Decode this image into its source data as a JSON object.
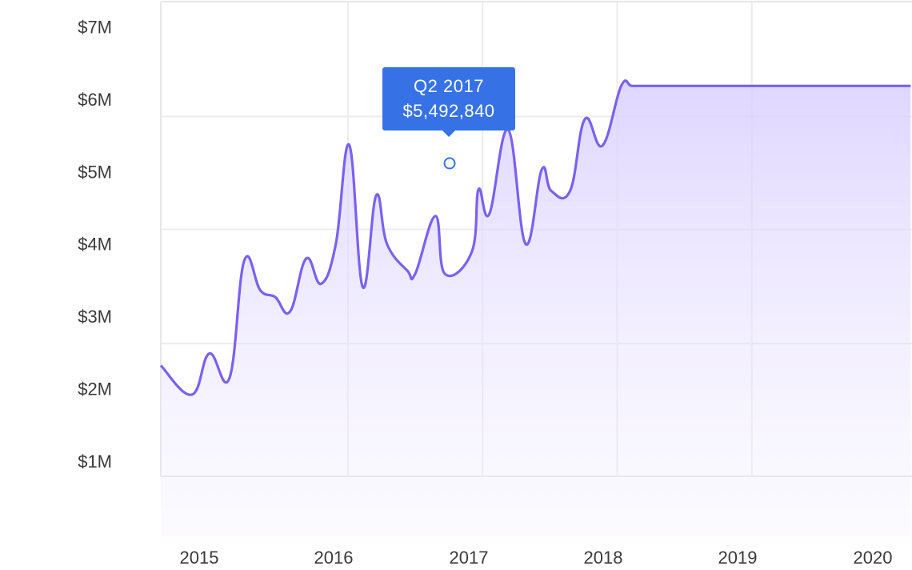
{
  "chart_data": {
    "type": "area",
    "title": "",
    "xlabel": "",
    "ylabel": "",
    "x_tick_labels": [
      "2015",
      "2016",
      "2017",
      "2018",
      "2019",
      "2020"
    ],
    "y_tick_labels": [
      "$7M",
      "$6M",
      "$5M",
      "$4M",
      "$3M",
      "$2M",
      "$1M"
    ],
    "ylim": [
      0.5,
      7.65
    ],
    "xlim": [
      2014.71,
      2020.29
    ],
    "grid": true,
    "line_color": "#7b61f0",
    "fill_color": "#e4dcff",
    "series": [
      {
        "name": "",
        "x": [
          2014.71,
          2014.94,
          2015.07,
          2015.22,
          2015.33,
          2015.45,
          2015.56,
          2015.67,
          2015.79,
          2015.9,
          2016.01,
          2016.11,
          2016.21,
          2016.31,
          2016.39,
          2016.54,
          2016.6,
          2016.75,
          2016.82,
          2017.02,
          2017.07,
          2017.15,
          2017.29,
          2017.42,
          2017.54,
          2017.61,
          2017.75,
          2017.86,
          2017.99,
          2018.13,
          2018.21,
          2018.33,
          2018.48,
          2018.61,
          2018.77,
          2018.9,
          2019.05,
          2019.21,
          2019.41,
          2019.53,
          2019.72,
          2019.86,
          2019.99,
          2020.1,
          2020.28
        ],
        "values": [
          2.17,
          1.73,
          2.35,
          1.98,
          3.75,
          3.3,
          3.2,
          2.98,
          3.78,
          3.4,
          4.0,
          5.49,
          3.35,
          4.73,
          4.0,
          3.6,
          3.55,
          4.42,
          3.55,
          3.88,
          4.82,
          4.45,
          5.72,
          4.0,
          5.12,
          4.8,
          4.8,
          5.88,
          5.48,
          6.38,
          6.38,
          6.38,
          6.38,
          6.38,
          6.38,
          6.38,
          6.38,
          6.38,
          6.38,
          6.38,
          6.38,
          6.38,
          6.38,
          6.38,
          6.38
        ]
      }
    ],
    "highlight": {
      "label": "Q2 2017",
      "value_text": "$5,492,840",
      "x": 2016.85,
      "y": 5.49
    }
  }
}
